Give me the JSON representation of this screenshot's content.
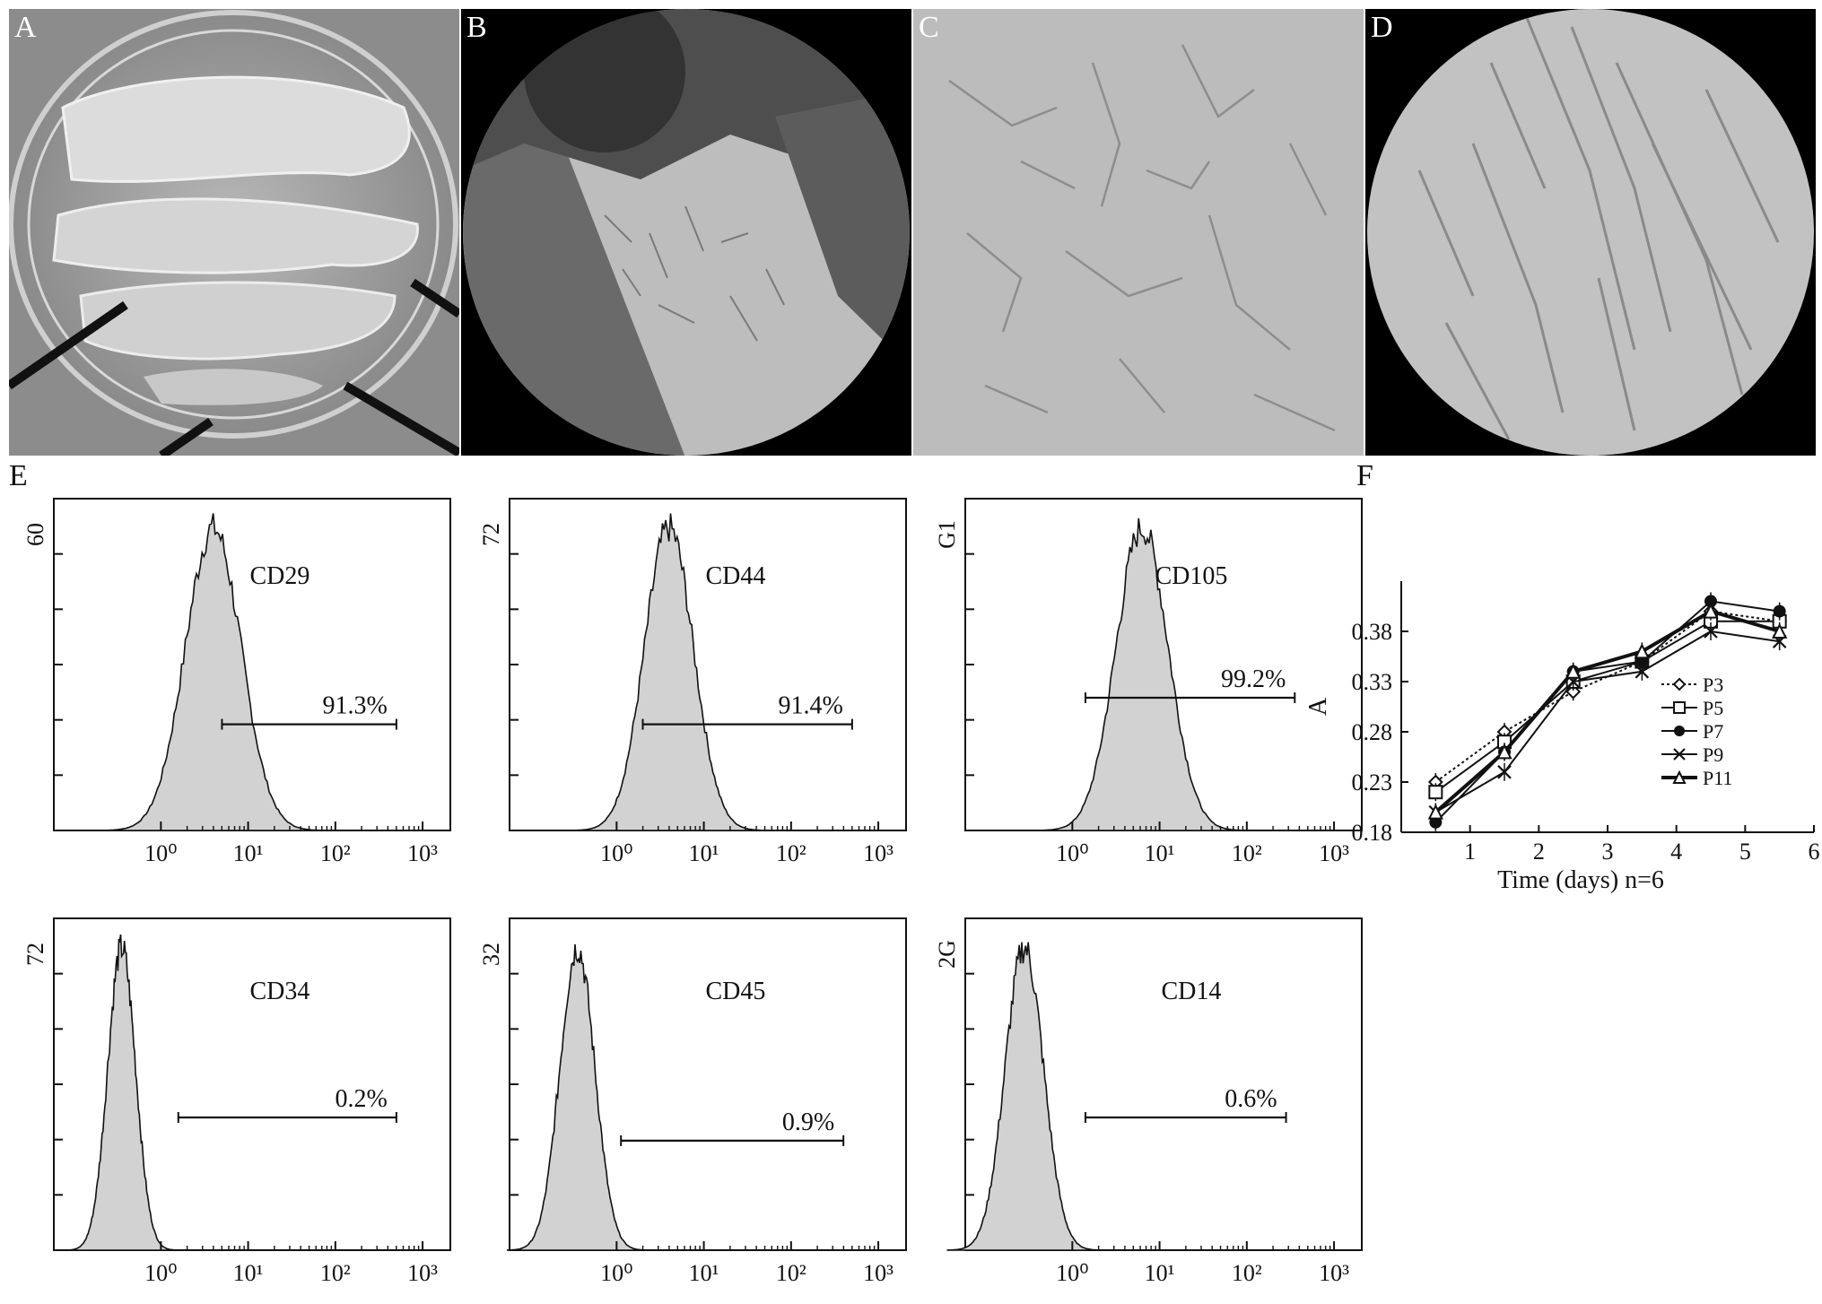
{
  "panel_letters": [
    "A",
    "B",
    "C",
    "D",
    "E",
    "F"
  ],
  "flow_panels": [
    {
      "marker": "CD29",
      "ymax_label": "60",
      "gate_value": "91.3%",
      "row": 0,
      "col": 0,
      "gate_from": 0.7,
      "gate_to": 2.7,
      "peak": 0.6,
      "width": 0.32
    },
    {
      "marker": "CD44",
      "ymax_label": "72",
      "gate_value": "91.4%",
      "row": 0,
      "col": 1,
      "gate_from": 0.3,
      "gate_to": 2.7,
      "peak": 0.6,
      "width": 0.28
    },
    {
      "marker": "CD105",
      "ymax_label": "G1",
      "gate_value": "99.2%",
      "row": 0,
      "col": 2,
      "gate_from": 0.15,
      "gate_to": 2.55,
      "peak": 0.8,
      "width": 0.3
    },
    {
      "marker": "CD34",
      "ymax_label": "72",
      "gate_value": "0.2%",
      "row": 1,
      "col": 0,
      "gate_from": 0.2,
      "gate_to": 2.7,
      "peak": -0.45,
      "width": 0.16
    },
    {
      "marker": "CD45",
      "ymax_label": "32",
      "gate_value": "0.9%",
      "row": 1,
      "col": 1,
      "gate_from": 0.05,
      "gate_to": 2.6,
      "peak": -0.45,
      "width": 0.2
    },
    {
      "marker": "CD14",
      "ymax_label": "2G",
      "gate_value": "0.6%",
      "row": 1,
      "col": 2,
      "gate_from": 0.15,
      "gate_to": 2.45,
      "peak": -0.55,
      "width": 0.22
    }
  ],
  "flow_tick_labels": [
    "10⁰",
    "10¹",
    "10²",
    "10³"
  ],
  "chart_data": {
    "type": "line",
    "xlabel": "Time (days) n=6",
    "ylabel": "A",
    "xlim": [
      0,
      6
    ],
    "ylim": [
      0.18,
      0.43
    ],
    "x_ticks": [
      "1",
      "2",
      "3",
      "4",
      "5",
      "6"
    ],
    "y_ticks": [
      "0.18",
      "0.23",
      "0.28",
      "0.33",
      "0.38"
    ],
    "x": [
      0.5,
      1.5,
      2.5,
      3.5,
      4.5,
      5.5
    ],
    "legend_position": "right-middle",
    "series": [
      {
        "name": "P3",
        "marker": "diamond-open",
        "line": "dotted",
        "values": [
          0.23,
          0.28,
          0.32,
          0.35,
          0.4,
          0.39
        ]
      },
      {
        "name": "P5",
        "marker": "square-open",
        "line": "solid",
        "values": [
          0.22,
          0.27,
          0.33,
          0.35,
          0.39,
          0.39
        ]
      },
      {
        "name": "P7",
        "marker": "circle-filled",
        "line": "solid",
        "values": [
          0.19,
          0.26,
          0.34,
          0.35,
          0.41,
          0.4
        ]
      },
      {
        "name": "P9",
        "marker": "x",
        "line": "solid",
        "values": [
          0.2,
          0.24,
          0.33,
          0.34,
          0.38,
          0.37
        ]
      },
      {
        "name": "P11",
        "marker": "triangle-open",
        "line": "thick",
        "values": [
          0.2,
          0.26,
          0.34,
          0.36,
          0.4,
          0.38
        ]
      }
    ]
  }
}
